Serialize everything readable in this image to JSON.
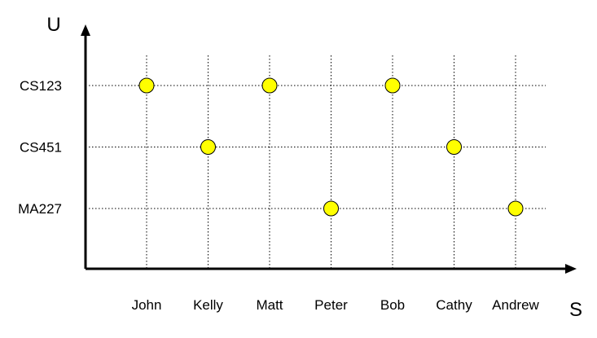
{
  "chart_data": {
    "type": "scatter",
    "title": "",
    "xlabel": "S",
    "ylabel": "U",
    "x_categories": [
      "John",
      "Kelly",
      "Matt",
      "Peter",
      "Bob",
      "Cathy",
      "Andrew"
    ],
    "y_categories": [
      "MA227",
      "CS451",
      "CS123"
    ],
    "points": [
      {
        "x": "John",
        "y": "CS123"
      },
      {
        "x": "Kelly",
        "y": "CS451"
      },
      {
        "x": "Matt",
        "y": "CS123"
      },
      {
        "x": "Peter",
        "y": "MA227"
      },
      {
        "x": "Bob",
        "y": "CS123"
      },
      {
        "x": "Cathy",
        "y": "CS451"
      },
      {
        "x": "Andrew",
        "y": "MA227"
      }
    ],
    "grid": true,
    "point_color": "#ffff00",
    "legend": "none"
  }
}
